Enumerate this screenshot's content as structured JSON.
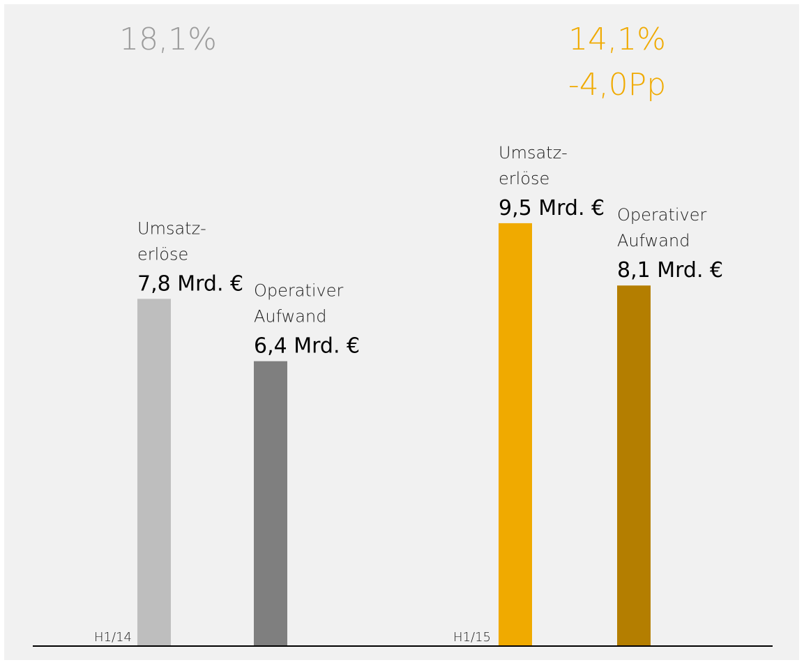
{
  "chart_data": {
    "type": "bar",
    "unit": "Mrd. €",
    "ylim": [
      0,
      10
    ],
    "grid": false,
    "groups": [
      {
        "period": "H1/14",
        "margin": "18,1%",
        "margin_change": "",
        "margin_color": "#9b9b9b",
        "bars": [
          {
            "label_lines": [
              "Umsatz-",
              "erlöse"
            ],
            "value": 7.8,
            "value_text": "7,8 Mrd. €",
            "color": "#bebebe"
          },
          {
            "label_lines": [
              "Operativer",
              "Aufwand"
            ],
            "value": 6.4,
            "value_text": "6,4 Mrd. €",
            "color": "#7f7f7f"
          }
        ]
      },
      {
        "period": "H1/15",
        "margin": "14,1%",
        "margin_change": "-4,0Pp",
        "margin_color": "#f0aa00",
        "bars": [
          {
            "label_lines": [
              "Umsatz-",
              "erlöse"
            ],
            "value": 9.5,
            "value_text": "9,5 Mrd. €",
            "color": "#f0aa00"
          },
          {
            "label_lines": [
              "Operativer",
              "Aufwand"
            ],
            "value": 8.1,
            "value_text": "8,1 Mrd. €",
            "color": "#b47e00"
          }
        ]
      }
    ]
  }
}
